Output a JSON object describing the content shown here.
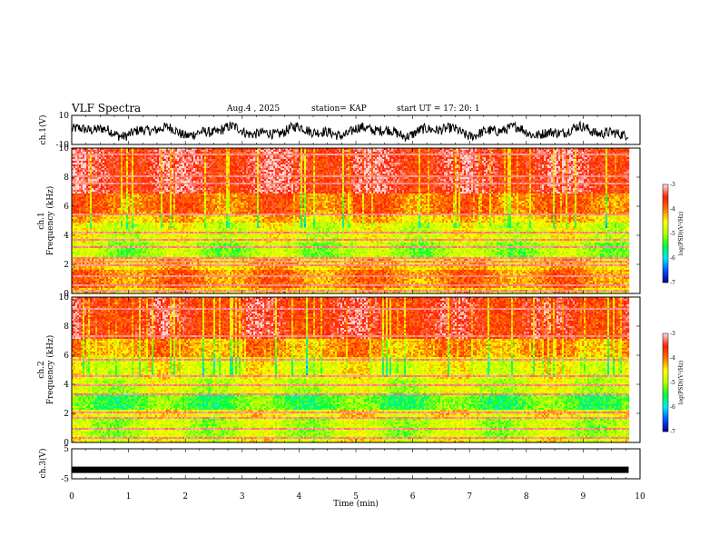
{
  "header": {
    "title": "VLF Spectra",
    "date": "Aug.4  , 2025",
    "station": "station= KAP",
    "start": "start  UT  =    17: 20: 1"
  },
  "colors": {
    "spectrum_scale": [
      "#00008c",
      "#0050ff",
      "#00e5ff",
      "#00ff3c",
      "#b4ff00",
      "#ffff00",
      "#ff7800",
      "#ff1e00",
      "#ffd7d7"
    ]
  },
  "chart_data": [
    {
      "type": "line",
      "id": "ch1-waveform",
      "ylabel": "ch.1(V)",
      "ylim": [
        -10,
        10
      ],
      "yticks": [
        -10,
        10
      ],
      "xlim": [
        0,
        10
      ],
      "x_extent_min": 9.8,
      "series": [
        {
          "approx_mean": 0,
          "approx_range": [
            -8,
            6
          ]
        }
      ]
    },
    {
      "type": "heatmap",
      "id": "ch1-spectrogram",
      "ylabel": "ch.1\nFrequency (kHz)",
      "ylim": [
        0,
        10
      ],
      "yticks": [
        0,
        2,
        4,
        6,
        8,
        10
      ],
      "xlim": [
        0,
        10
      ],
      "x_extent_min": 9.8,
      "colorbar": {
        "label": "log(PSD)(V²/Hz)",
        "range": [
          -7,
          -3
        ],
        "ticks": [
          -3,
          -4,
          -5,
          -6,
          -7
        ]
      },
      "bands": [
        {
          "from": 0,
          "to": 0.5,
          "level": -4.4
        },
        {
          "from": 0.5,
          "to": 1.7,
          "level": -4.0
        },
        {
          "from": 1.7,
          "to": 2.4,
          "level": -4.3
        },
        {
          "from": 2.4,
          "to": 3.6,
          "level": -5.0
        },
        {
          "from": 3.6,
          "to": 4.9,
          "level": -4.7
        },
        {
          "from": 4.9,
          "to": 5.5,
          "level": -4.3
        },
        {
          "from": 5.5,
          "to": 7.0,
          "level": -3.9
        },
        {
          "from": 7.0,
          "to": 10,
          "level": -3.4
        }
      ],
      "lines_khz": [
        0.3,
        0.6,
        1.2,
        2.0,
        2.3,
        2.5,
        3.2,
        3.7,
        4.2,
        5.5,
        7.6,
        8.1,
        9.6
      ]
    },
    {
      "type": "heatmap",
      "id": "ch2-spectrogram",
      "ylabel": "ch.2\nFrequency (kHz)",
      "ylim": [
        0,
        10
      ],
      "yticks": [
        0,
        2,
        4,
        6,
        8,
        10
      ],
      "xlim": [
        0,
        10
      ],
      "x_extent_min": 9.8,
      "colorbar": {
        "label": "log(PSD)(V²/Hz)",
        "range": [
          -7,
          -3
        ],
        "ticks": [
          -3,
          -4,
          -5,
          -6,
          -7
        ]
      },
      "bands": [
        {
          "from": 0,
          "to": 0.5,
          "level": -4.6
        },
        {
          "from": 0.5,
          "to": 1.8,
          "level": -4.9
        },
        {
          "from": 1.8,
          "to": 2.3,
          "level": -4.5
        },
        {
          "from": 2.3,
          "to": 3.4,
          "level": -5.3
        },
        {
          "from": 3.4,
          "to": 4.5,
          "level": -4.8
        },
        {
          "from": 4.5,
          "to": 6.0,
          "level": -4.6
        },
        {
          "from": 6.0,
          "to": 7.2,
          "level": -4.1
        },
        {
          "from": 7.2,
          "to": 10,
          "level": -3.5
        }
      ],
      "lines_khz": [
        0.4,
        1.0,
        1.8,
        2.1,
        3.4,
        4.0,
        4.6,
        5.8,
        7.4,
        9.2
      ]
    },
    {
      "type": "line",
      "id": "ch3-waveform",
      "ylabel": "ch.3(V)",
      "xlabel": "Time  (min)",
      "ylim": [
        -5,
        5
      ],
      "yticks": [
        -5,
        5
      ],
      "xlim": [
        0,
        10
      ],
      "xticks": [
        0,
        1,
        2,
        3,
        4,
        5,
        6,
        7,
        8,
        9,
        10
      ],
      "x_extent_min": 9.8,
      "series": [
        {
          "value": -2
        }
      ]
    }
  ]
}
